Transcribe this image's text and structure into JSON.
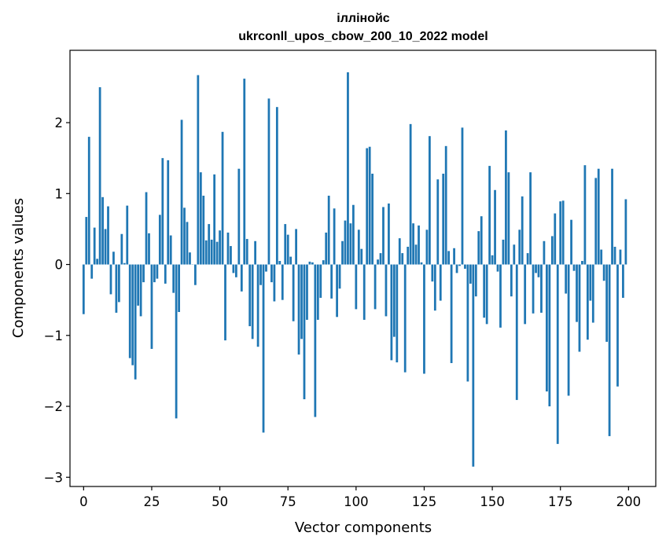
{
  "chart_data": {
    "type": "bar",
    "title": "іллінойс",
    "subtitle": "ukrconll_upos_cbow_200_10_2022 model",
    "xlabel": "Vector components",
    "ylabel": "Components values",
    "xlim": [
      -5,
      210
    ],
    "ylim": [
      -3.13,
      3.02
    ],
    "xticks": [
      0,
      25,
      50,
      75,
      100,
      125,
      150,
      175,
      200
    ],
    "yticks": [
      -3,
      -2,
      -1,
      0,
      1,
      2
    ],
    "xtick_labels": [
      "0",
      "25",
      "50",
      "75",
      "100",
      "125",
      "150",
      "175",
      "200"
    ],
    "ytick_labels": [
      "−3",
      "−2",
      "−1",
      "0",
      "1",
      "2"
    ],
    "grid": false,
    "bar_color": "#1f77b4",
    "x": [
      0,
      1,
      2,
      3,
      4,
      5,
      6,
      7,
      8,
      9,
      10,
      11,
      12,
      13,
      14,
      15,
      16,
      17,
      18,
      19,
      20,
      21,
      22,
      23,
      24,
      25,
      26,
      27,
      28,
      29,
      30,
      31,
      32,
      33,
      34,
      35,
      36,
      37,
      38,
      39,
      40,
      41,
      42,
      43,
      44,
      45,
      46,
      47,
      48,
      49,
      50,
      51,
      52,
      53,
      54,
      55,
      56,
      57,
      58,
      59,
      60,
      61,
      62,
      63,
      64,
      65,
      66,
      67,
      68,
      69,
      70,
      71,
      72,
      73,
      74,
      75,
      76,
      77,
      78,
      79,
      80,
      81,
      82,
      83,
      84,
      85,
      86,
      87,
      88,
      89,
      90,
      91,
      92,
      93,
      94,
      95,
      96,
      97,
      98,
      99,
      100,
      101,
      102,
      103,
      104,
      105,
      106,
      107,
      108,
      109,
      110,
      111,
      112,
      113,
      114,
      115,
      116,
      117,
      118,
      119,
      120,
      121,
      122,
      123,
      124,
      125,
      126,
      127,
      128,
      129,
      130,
      131,
      132,
      133,
      134,
      135,
      136,
      137,
      138,
      139,
      140,
      141,
      142,
      143,
      144,
      145,
      146,
      147,
      148,
      149,
      150,
      151,
      152,
      153,
      154,
      155,
      156,
      157,
      158,
      159,
      160,
      161,
      162,
      163,
      164,
      165,
      166,
      167,
      168,
      169,
      170,
      171,
      172,
      173,
      174,
      175,
      176,
      177,
      178,
      179,
      180,
      181,
      182,
      183,
      184,
      185,
      186,
      187,
      188,
      189,
      190,
      191,
      192,
      193,
      194,
      195,
      196,
      197,
      198,
      199
    ],
    "values": [
      -0.7,
      0.67,
      1.8,
      -0.2,
      0.52,
      0.08,
      2.5,
      0.95,
      0.5,
      0.82,
      -0.42,
      0.18,
      -0.68,
      -0.53,
      0.43,
      0.02,
      0.83,
      -1.32,
      -1.42,
      -1.62,
      -0.58,
      -0.73,
      -0.25,
      1.02,
      0.44,
      -1.19,
      -0.25,
      -0.2,
      0.7,
      1.5,
      -0.27,
      1.47,
      0.41,
      -0.4,
      -2.17,
      -0.67,
      2.04,
      0.8,
      0.6,
      0.17,
      0.0,
      -0.29,
      2.67,
      1.3,
      0.97,
      0.34,
      0.57,
      0.35,
      1.27,
      0.32,
      0.48,
      1.87,
      -1.07,
      0.45,
      0.26,
      -0.12,
      -0.18,
      1.35,
      -0.38,
      2.62,
      0.36,
      -0.87,
      -1.05,
      0.33,
      -1.16,
      -0.29,
      -2.37,
      -0.1,
      2.34,
      -0.25,
      -0.52,
      2.22,
      0.05,
      -0.5,
      0.57,
      0.42,
      0.11,
      -0.8,
      0.5,
      -1.27,
      -1.05,
      -1.9,
      -0.78,
      0.04,
      0.03,
      -2.15,
      -0.78,
      -0.47,
      0.06,
      0.45,
      0.97,
      -0.48,
      0.79,
      -0.74,
      -0.34,
      0.33,
      0.62,
      2.71,
      0.58,
      0.84,
      -0.63,
      0.49,
      0.22,
      -0.78,
      1.64,
      1.66,
      1.28,
      -0.63,
      0.07,
      0.16,
      0.81,
      -0.73,
      0.86,
      -1.35,
      -1.02,
      -1.38,
      0.37,
      0.16,
      -1.52,
      0.25,
      1.98,
      0.58,
      0.28,
      0.55,
      0.03,
      -1.54,
      0.49,
      1.81,
      -0.24,
      -0.65,
      1.2,
      -0.51,
      1.28,
      1.67,
      0.19,
      -1.39,
      0.23,
      -0.12,
      -0.02,
      1.93,
      -0.06,
      -1.65,
      -0.27,
      -2.85,
      -0.45,
      0.47,
      0.68,
      -0.75,
      -0.84,
      1.39,
      0.13,
      1.05,
      -0.1,
      -0.89,
      0.35,
      1.89,
      1.3,
      -0.45,
      0.28,
      -1.91,
      0.49,
      0.96,
      -0.84,
      0.16,
      1.3,
      -0.69,
      -0.12,
      -0.18,
      -0.68,
      0.33,
      -1.79,
      -2.0,
      0.4,
      0.72,
      -2.53,
      0.89,
      0.9,
      -0.41,
      -1.85,
      0.63,
      -0.09,
      -0.81,
      -1.23,
      0.05,
      1.4,
      -1.06,
      -0.51,
      -0.82,
      1.22,
      1.35,
      0.21,
      -0.23,
      -1.09,
      -2.42,
      1.35,
      0.25,
      -1.72,
      0.21,
      -0.47,
      0.92
    ]
  }
}
